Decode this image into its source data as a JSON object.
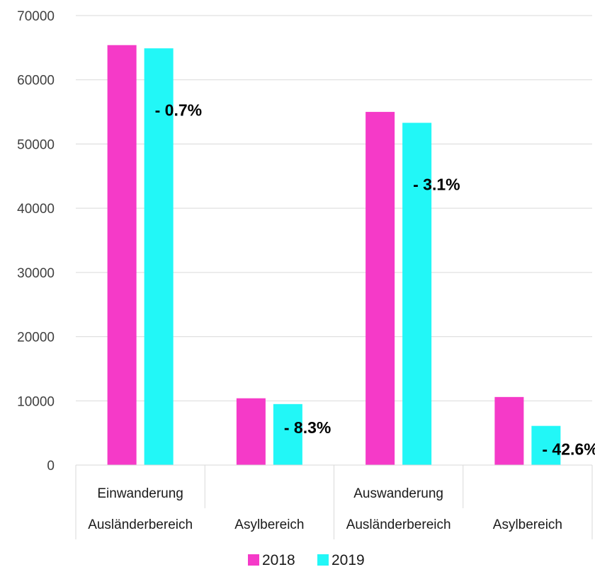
{
  "chart_data": {
    "type": "bar",
    "ylim": [
      0,
      70000
    ],
    "y_ticks": [
      0,
      10000,
      20000,
      30000,
      40000,
      50000,
      60000,
      70000
    ],
    "grid": true,
    "legend_position": "bottom",
    "categories": [
      {
        "group": "Einwanderung",
        "label": "Ausländerbereich"
      },
      {
        "group": "",
        "label": "Asylbereich"
      },
      {
        "group": "Auswanderung",
        "label": "Ausländerbereich"
      },
      {
        "group": "",
        "label": "Asylbereich"
      }
    ],
    "series": [
      {
        "name": "2018",
        "color": "#f53ac8",
        "values": [
          65400,
          10400,
          55000,
          10600
        ]
      },
      {
        "name": "2019",
        "color": "#22f7f7",
        "values": [
          64900,
          9500,
          53300,
          6100
        ]
      }
    ],
    "change_labels": [
      "- 0.7%",
      "- 8.3%",
      "- 3.1%",
      "- 42.6%"
    ]
  }
}
